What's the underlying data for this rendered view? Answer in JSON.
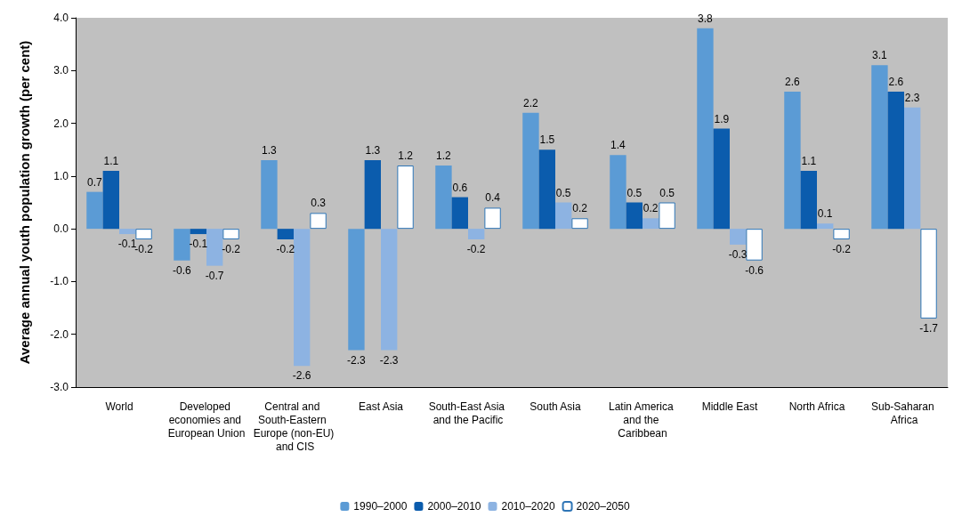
{
  "chart_data": {
    "type": "bar",
    "ylabel": "Average annual youth population growth (per cent)",
    "categories": [
      "World",
      "Developed economies and European Union",
      "Central and South-Eastern Europe (non-EU) and CIS",
      "East Asia",
      "South-East Asia and the Pacific",
      "South Asia",
      "Latin America and the Caribbean",
      "Middle East",
      "North Africa",
      "Sub-Saharan Africa"
    ],
    "series": [
      {
        "name": "1990–2000",
        "color": "#5b9bd5",
        "values": [
          0.7,
          -0.6,
          1.3,
          -2.3,
          1.2,
          2.2,
          1.4,
          3.8,
          2.6,
          3.1
        ]
      },
      {
        "name": "2000–2010",
        "color": "#0b5cad",
        "values": [
          1.1,
          -0.1,
          -0.2,
          1.3,
          0.6,
          1.5,
          0.5,
          1.9,
          1.1,
          2.6
        ]
      },
      {
        "name": "2010–2020",
        "color": "#8db3e2",
        "values": [
          -0.1,
          -0.7,
          -2.6,
          -2.3,
          -0.2,
          0.5,
          0.2,
          -0.3,
          0.1,
          2.3
        ]
      },
      {
        "name": "2020–2050",
        "color": "#ffffff",
        "values": [
          -0.2,
          -0.2,
          0.3,
          1.2,
          0.4,
          0.2,
          0.5,
          -0.6,
          -0.2,
          -1.7
        ]
      }
    ],
    "ylim": [
      -3,
      4
    ],
    "yticks": [
      {
        "value": -3,
        "label": "-3.0"
      },
      {
        "value": -2,
        "label": "-2.0"
      },
      {
        "value": -1,
        "label": "-1.0"
      },
      {
        "value": 0,
        "label": "0.0"
      },
      {
        "value": 1,
        "label": "1.0"
      },
      {
        "value": 2,
        "label": "2.0"
      },
      {
        "value": 3,
        "label": "3.0"
      },
      {
        "value": 4,
        "label": "4.0"
      }
    ],
    "data_labels": true,
    "grid": false,
    "legend": "bottom"
  }
}
